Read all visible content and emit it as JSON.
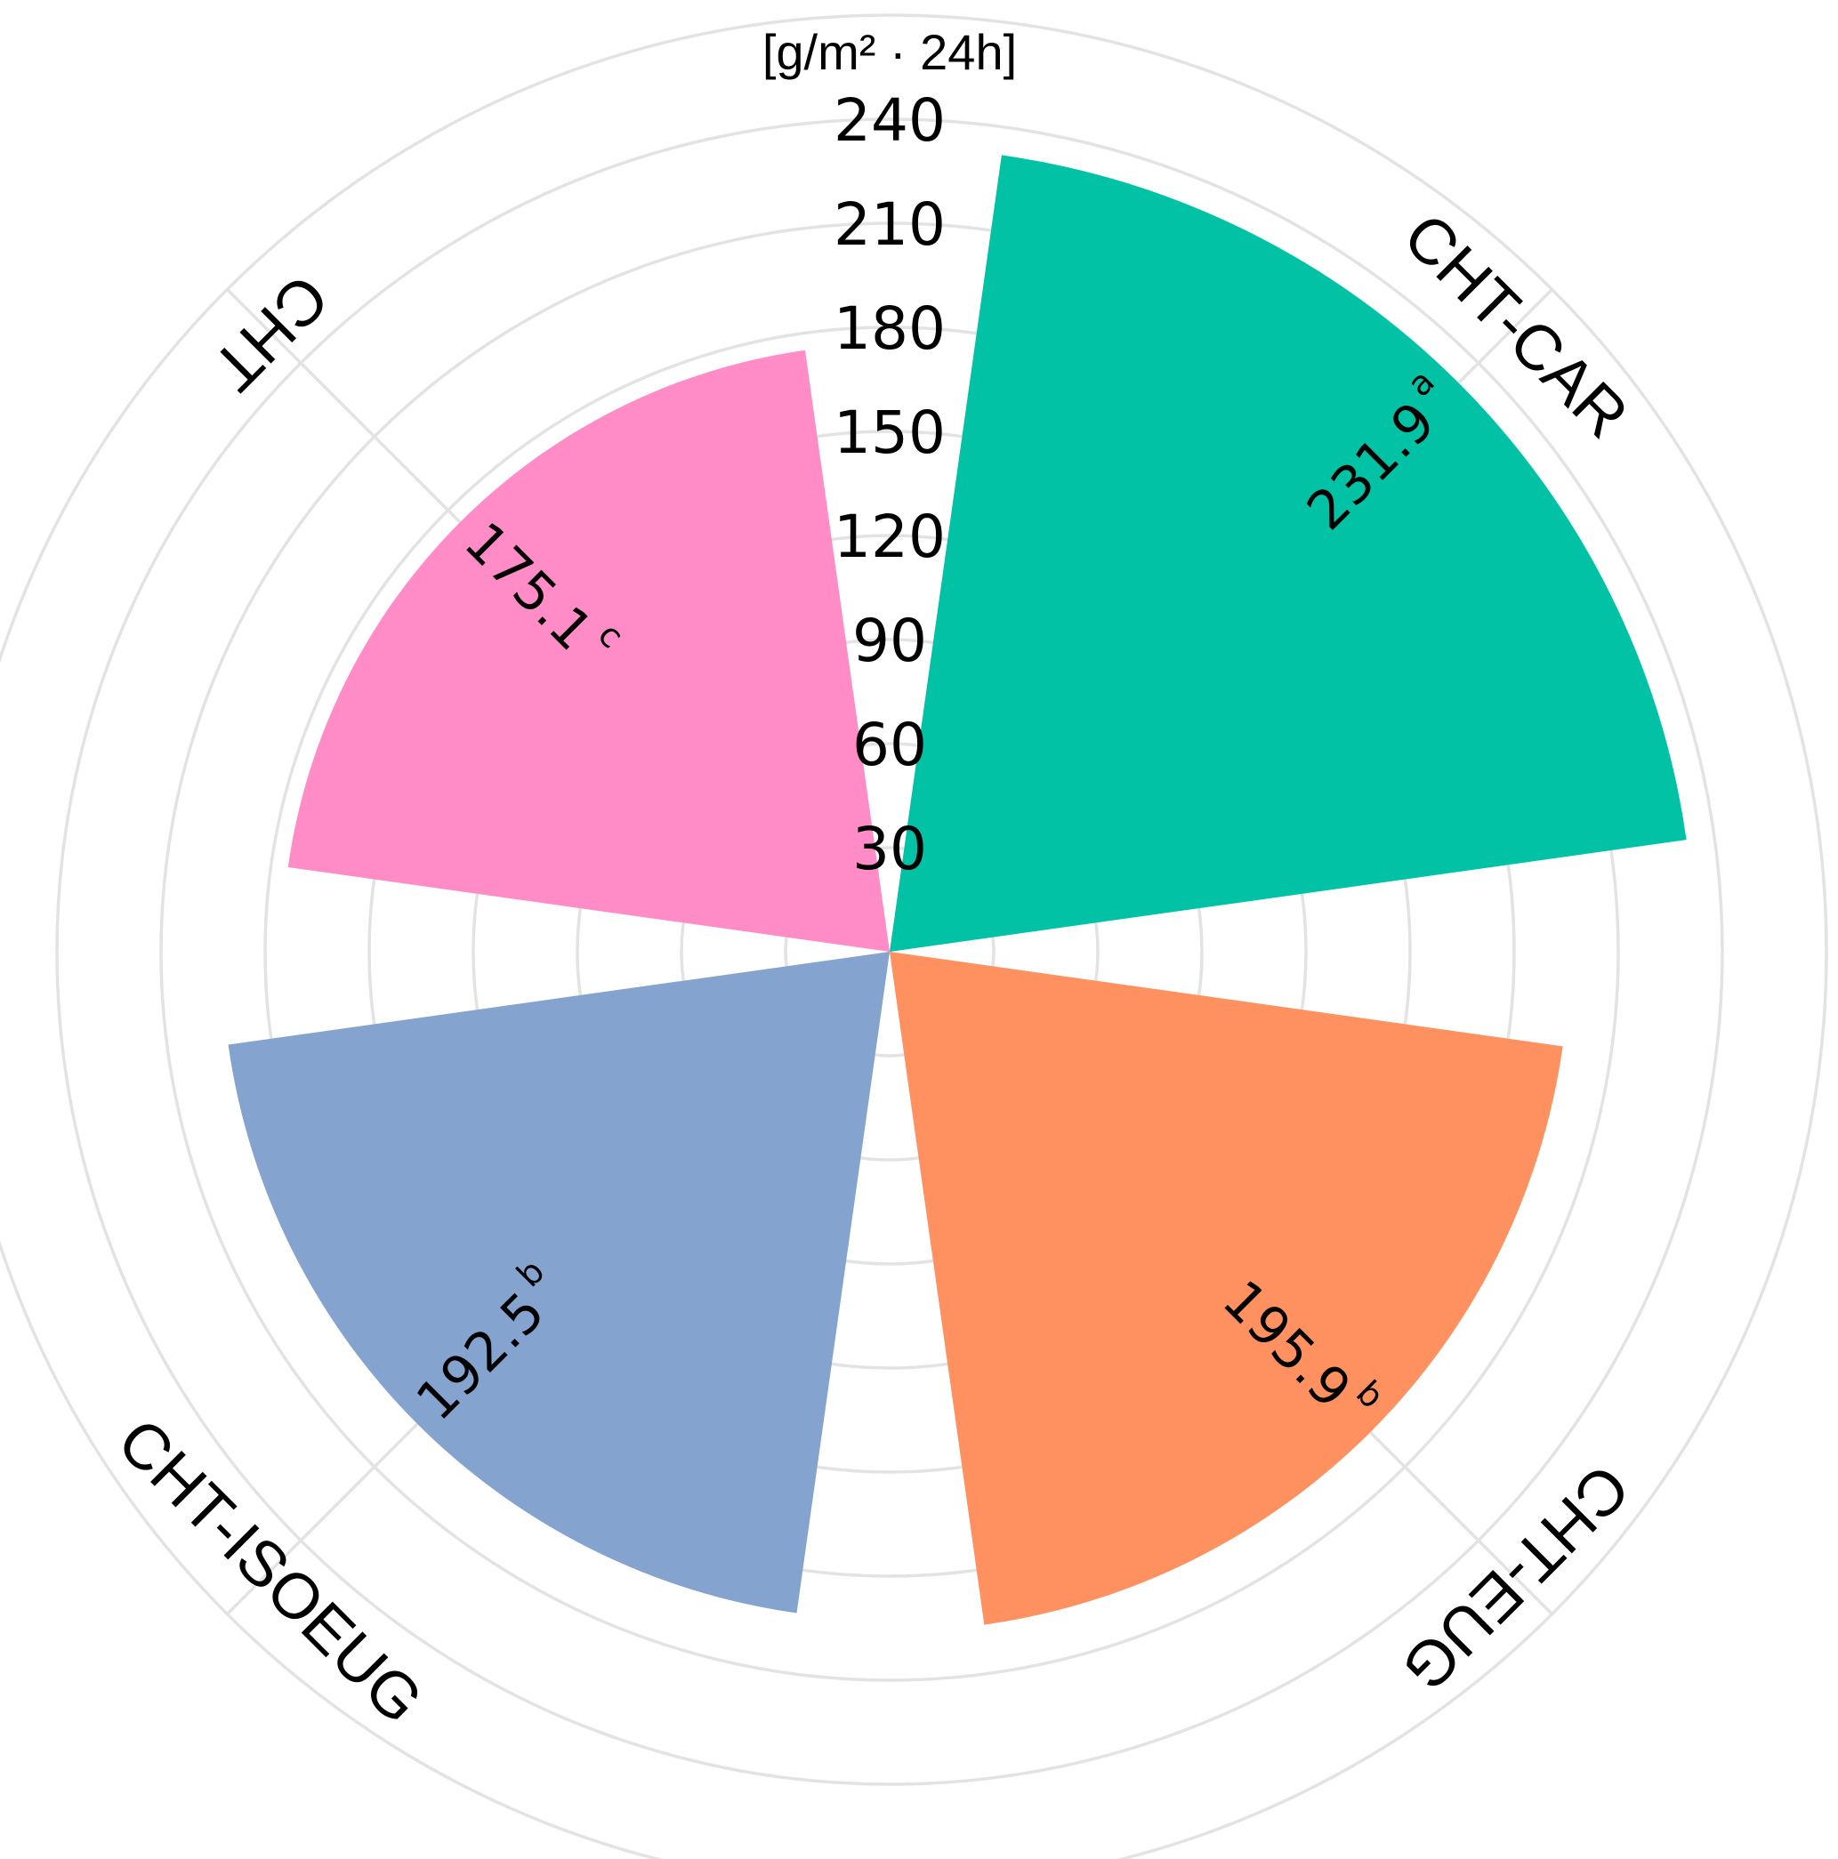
{
  "chart_data": {
    "type": "polar-bar",
    "unit_label": "[g/m² · 24h]",
    "r_ticks": [
      30,
      60,
      90,
      120,
      150,
      180,
      210,
      240
    ],
    "r_tick_labels": [
      "30",
      "60",
      "90",
      "120",
      "150",
      "180",
      "210",
      "240"
    ],
    "r_max": 240,
    "grid": true,
    "categories": [
      "CHT-CAR",
      "CHT-EUG",
      "CHT-ISOEUG",
      "CHT"
    ],
    "values": [
      231.9,
      195.9,
      192.5,
      175.1
    ],
    "value_labels": [
      "231.9",
      "195.9",
      "192.5",
      "175.1"
    ],
    "significance": [
      "a",
      "b",
      "b",
      "c"
    ],
    "colors": [
      "#02c2a5",
      "#ff9060",
      "#85a3cf",
      "#ff8cc6"
    ]
  }
}
